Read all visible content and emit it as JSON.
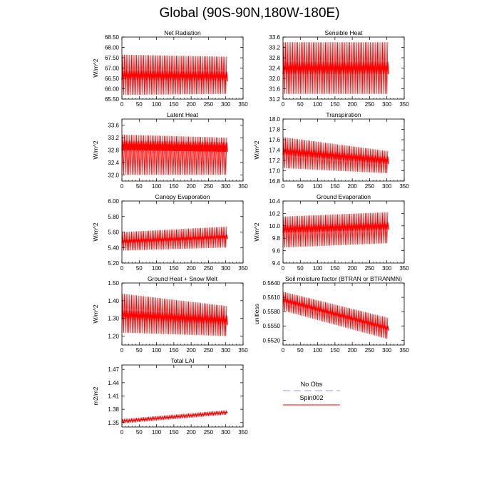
{
  "page_title": "Global (90S-90N,180W-180E)",
  "legend": {
    "entries": [
      {
        "label": "No Obs",
        "color": "#9999ee",
        "dash": true
      },
      {
        "label": "Spin002",
        "color": "#ff0000",
        "dash": false
      }
    ]
  },
  "chart_data": [
    {
      "type": "line",
      "title": "Net Radiation",
      "ylabel": "W/m^2",
      "xlim": [
        0,
        350
      ],
      "ylim": [
        65.5,
        68.5
      ],
      "xticks": [
        "0",
        "50",
        "100",
        "150",
        "200",
        "250",
        "300",
        "350"
      ],
      "yticks": [
        "65.50",
        "66.00",
        "66.50",
        "67.00",
        "67.50",
        "68.00",
        "68.50"
      ],
      "series": [
        {
          "name": "Spin002",
          "x_range": [
            0,
            305
          ],
          "cycle_count": 61,
          "envelope_low": [
            65.7,
            65.75
          ],
          "envelope_high": [
            67.65,
            67.55
          ],
          "mean": [
            66.65,
            66.6
          ]
        }
      ]
    },
    {
      "type": "line",
      "title": "Sensible Heat",
      "ylabel": "",
      "xlim": [
        0,
        350
      ],
      "ylim": [
        31.2,
        33.6
      ],
      "xticks": [
        "0",
        "50",
        "100",
        "150",
        "200",
        "250",
        "300",
        "350"
      ],
      "yticks": [
        "31.2",
        "31.6",
        "32.0",
        "32.4",
        "32.8",
        "33.2",
        "33.6"
      ],
      "series": [
        {
          "name": "Spin002",
          "x_range": [
            0,
            305
          ],
          "cycle_count": 61,
          "envelope_low": [
            31.4,
            31.4
          ],
          "envelope_high": [
            33.4,
            33.4
          ],
          "mean": [
            32.4,
            32.4
          ]
        }
      ]
    },
    {
      "type": "line",
      "title": "Latent Heat",
      "ylabel": "W/m^2",
      "xlim": [
        0,
        350
      ],
      "ylim": [
        31.8,
        33.8
      ],
      "xticks": [
        "0",
        "50",
        "100",
        "150",
        "200",
        "250",
        "300",
        "350"
      ],
      "yticks": [
        "32.0",
        "32.4",
        "32.8",
        "33.2",
        "33.6"
      ],
      "series": [
        {
          "name": "Spin002",
          "x_range": [
            0,
            305
          ],
          "cycle_count": 61,
          "envelope_low": [
            32.0,
            32.0
          ],
          "envelope_high": [
            33.3,
            33.2
          ],
          "mean": [
            32.95,
            32.9
          ]
        }
      ]
    },
    {
      "type": "line",
      "title": "Transpiration",
      "ylabel": "W/m^2",
      "xlim": [
        0,
        350
      ],
      "ylim": [
        16.8,
        18.0
      ],
      "xticks": [
        "0",
        "50",
        "100",
        "150",
        "200",
        "250",
        "300",
        "350"
      ],
      "yticks": [
        "16.8",
        "17.0",
        "17.2",
        "17.4",
        "17.6",
        "17.8",
        "18.0"
      ],
      "series": [
        {
          "name": "Spin002",
          "x_range": [
            0,
            305
          ],
          "cycle_count": 61,
          "envelope_low": [
            17.05,
            16.95
          ],
          "envelope_high": [
            17.65,
            17.38
          ],
          "mean": [
            17.38,
            17.2
          ]
        }
      ]
    },
    {
      "type": "line",
      "title": "Canopy Evaporation",
      "ylabel": "W/m^2",
      "xlim": [
        0,
        350
      ],
      "ylim": [
        5.2,
        6.0
      ],
      "xticks": [
        "0",
        "50",
        "100",
        "150",
        "200",
        "250",
        "300",
        "350"
      ],
      "yticks": [
        "5.20",
        "5.40",
        "5.60",
        "5.80",
        "6.00"
      ],
      "series": [
        {
          "name": "Spin002",
          "x_range": [
            0,
            305
          ],
          "cycle_count": 61,
          "envelope_low": [
            5.36,
            5.4
          ],
          "envelope_high": [
            5.6,
            5.67
          ],
          "mean": [
            5.48,
            5.54
          ]
        }
      ]
    },
    {
      "type": "line",
      "title": "Ground Evaporation",
      "ylabel": "W/m^2",
      "xlim": [
        0,
        350
      ],
      "ylim": [
        9.4,
        10.4
      ],
      "xticks": [
        "0",
        "50",
        "100",
        "150",
        "200",
        "250",
        "300",
        "350"
      ],
      "yticks": [
        "9.4",
        "9.6",
        "9.8",
        "10.0",
        "10.2",
        "10.4"
      ],
      "series": [
        {
          "name": "Spin002",
          "x_range": [
            0,
            305
          ],
          "cycle_count": 61,
          "envelope_low": [
            9.65,
            9.72
          ],
          "envelope_high": [
            10.15,
            10.22
          ],
          "mean": [
            9.95,
            10.0
          ]
        }
      ]
    },
    {
      "type": "line",
      "title": "Ground Heat + Snow Melt",
      "ylabel": "W/m^2",
      "xlim": [
        0,
        350
      ],
      "ylim": [
        1.15,
        1.5
      ],
      "xticks": [
        "0",
        "50",
        "100",
        "150",
        "200",
        "250",
        "300",
        "350"
      ],
      "yticks": [
        "1.20",
        "1.30",
        "1.40",
        "1.50"
      ],
      "series": [
        {
          "name": "Spin002",
          "x_range": [
            0,
            305
          ],
          "cycle_count": 61,
          "envelope_low": [
            1.22,
            1.2
          ],
          "envelope_high": [
            1.44,
            1.37
          ],
          "mean": [
            1.32,
            1.29
          ]
        }
      ]
    },
    {
      "type": "line",
      "title": "Soil moisture factor (BTRAN or BTRANMN)",
      "ylabel": "unitless",
      "xlim": [
        0,
        350
      ],
      "ylim": [
        0.551,
        0.564
      ],
      "xticks": [
        "0",
        "50",
        "100",
        "150",
        "200",
        "250",
        "300",
        "350"
      ],
      "yticks": [
        "0.5520",
        "0.5550",
        "0.5580",
        "0.5610",
        "0.5640"
      ],
      "series": [
        {
          "name": "Spin002",
          "x_range": [
            0,
            305
          ],
          "cycle_count": 61,
          "envelope_low": [
            0.5582,
            0.5522
          ],
          "envelope_high": [
            0.5622,
            0.5567
          ],
          "mean": [
            0.5605,
            0.5545
          ]
        }
      ]
    },
    {
      "type": "line",
      "title": "Total LAI",
      "ylabel": "m2/m2",
      "xlim": [
        0,
        350
      ],
      "ylim": [
        1.34,
        1.48
      ],
      "xticks": [
        "0",
        "50",
        "100",
        "150",
        "200",
        "250",
        "300",
        "350"
      ],
      "yticks": [
        "1.35",
        "1.38",
        "1.41",
        "1.44",
        "1.47"
      ],
      "series": [
        {
          "name": "Spin002",
          "x_range": [
            0,
            305
          ],
          "cycle_count": 61,
          "envelope_low": [
            1.348,
            1.368
          ],
          "envelope_high": [
            1.358,
            1.378
          ],
          "mean": [
            1.353,
            1.373
          ]
        }
      ]
    }
  ]
}
